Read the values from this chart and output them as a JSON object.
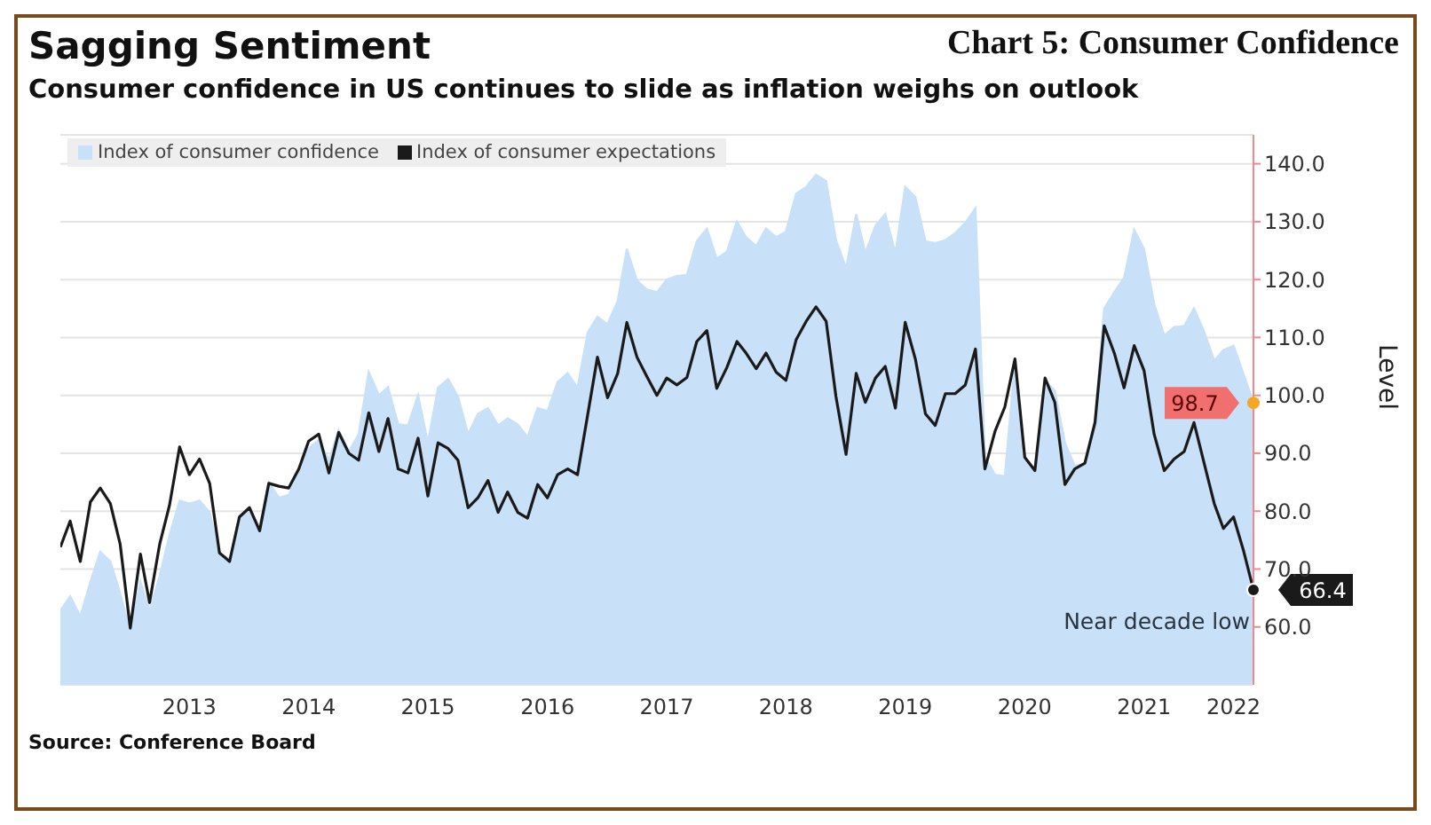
{
  "chart_data": {
    "type": "line",
    "title": "Sagging Sentiment",
    "subtitle": "Consumer confidence in US continues to slide as inflation weighs on outlook",
    "ylabel": "Level",
    "annotations": [
      "Chart 5: Consumer Confidence",
      "Source: Conference Board",
      {
        "text": "Near decade low",
        "x": "2022-06",
        "y": 66.4
      }
    ],
    "x": [
      "2012-06",
      "2012-07",
      "2012-08",
      "2012-09",
      "2012-10",
      "2012-11",
      "2012-12",
      "2013-01",
      "2013-02",
      "2013-03",
      "2013-04",
      "2013-05",
      "2013-06",
      "2013-07",
      "2013-08",
      "2013-09",
      "2013-10",
      "2013-11",
      "2013-12",
      "2014-01",
      "2014-02",
      "2014-03",
      "2014-04",
      "2014-05",
      "2014-06",
      "2014-07",
      "2014-08",
      "2014-09",
      "2014-10",
      "2014-11",
      "2014-12",
      "2015-01",
      "2015-02",
      "2015-03",
      "2015-04",
      "2015-05",
      "2015-06",
      "2015-07",
      "2015-08",
      "2015-09",
      "2015-10",
      "2015-11",
      "2015-12",
      "2016-01",
      "2016-02",
      "2016-03",
      "2016-04",
      "2016-05",
      "2016-06",
      "2016-07",
      "2016-08",
      "2016-09",
      "2016-10",
      "2016-11",
      "2016-12",
      "2017-01",
      "2017-02",
      "2017-03",
      "2017-04",
      "2017-05",
      "2017-06",
      "2017-07",
      "2017-08",
      "2017-09",
      "2017-10",
      "2017-11",
      "2017-12",
      "2018-01",
      "2018-02",
      "2018-03",
      "2018-04",
      "2018-05",
      "2018-06",
      "2018-07",
      "2018-08",
      "2018-09",
      "2018-10",
      "2018-11",
      "2018-12",
      "2019-01",
      "2019-02",
      "2019-03",
      "2019-04",
      "2019-05",
      "2019-06",
      "2019-07",
      "2019-08",
      "2019-09",
      "2019-10",
      "2019-11",
      "2019-12",
      "2020-01",
      "2020-02",
      "2020-03",
      "2020-04",
      "2020-05",
      "2020-06",
      "2020-07",
      "2020-08",
      "2020-09",
      "2020-10",
      "2020-11",
      "2020-12",
      "2021-01",
      "2021-02",
      "2021-03",
      "2021-04",
      "2021-05",
      "2021-06",
      "2021-07",
      "2021-08",
      "2021-09",
      "2021-10",
      "2021-11",
      "2021-12",
      "2022-01",
      "2022-02",
      "2022-03",
      "2022-04",
      "2022-05",
      "2022-06"
    ],
    "series": [
      {
        "name": "Index of consumer confidence",
        "type": "area",
        "color": "#c8e1f9",
        "values": [
          62.8,
          65.3,
          61.8,
          67.8,
          73,
          71.3,
          65.8,
          59.3,
          67.8,
          62.8,
          68.8,
          75.8,
          81.8,
          81.3,
          81.8,
          79.8,
          72.6,
          71.8,
          78.8,
          80,
          77.3,
          85,
          82.3,
          82.8,
          86.8,
          90.8,
          92.3,
          88.8,
          94,
          90.3,
          93.3,
          104,
          100,
          101.4,
          95,
          94.8,
          100,
          91.8,
          101.3,
          102.8,
          99.8,
          93.3,
          96.8,
          97.8,
          94.8,
          96,
          95,
          92.8,
          97.8,
          97.3,
          102.3,
          103.8,
          101.3,
          110.8,
          113.6,
          112.3,
          116.3,
          125.3,
          119.8,
          118.3,
          117.8,
          120,
          120.6,
          120.8,
          126.6,
          128.8,
          123.6,
          124.8,
          130,
          127.3,
          125.8,
          128.8,
          127.3,
          128.3,
          134.8,
          136,
          138.1,
          137,
          126.8,
          122,
          131.3,
          124.6,
          129.3,
          131.3,
          124.6,
          136,
          134.3,
          126.6,
          126.3,
          126.8,
          128,
          129.8,
          132.3,
          89.3,
          86.3,
          86,
          105.8,
          89.3,
          87.3,
          102.6,
          100.8,
          91.8,
          87.8,
          88.3,
          95.8,
          115,
          117.8,
          120.3,
          128.6,
          125.3,
          115.8,
          110.3,
          111.8,
          112,
          115,
          111,
          106,
          107.8,
          108.6,
          103.8,
          98.7
        ],
        "value_labels": [
          null,
          null,
          null,
          null,
          null,
          null,
          null,
          null,
          null,
          null,
          null,
          null,
          null,
          null,
          null,
          null,
          null,
          null,
          null,
          null,
          null,
          null,
          null,
          null,
          null,
          null,
          null,
          null,
          null,
          null,
          null,
          null,
          null,
          null,
          null,
          null,
          null,
          null,
          null,
          null,
          null,
          null,
          null,
          null,
          null,
          null,
          null,
          null,
          null,
          null,
          null,
          null,
          null,
          null,
          null,
          null,
          null,
          null,
          null,
          null,
          null,
          null,
          null,
          null,
          null,
          null,
          null,
          null,
          null,
          null,
          null,
          null,
          null,
          null,
          null,
          null,
          null,
          null,
          null,
          null,
          null,
          null,
          null,
          null,
          null,
          null,
          null,
          null,
          null,
          null,
          null,
          null,
          null,
          null,
          null,
          null,
          null,
          null,
          null,
          null,
          null,
          null,
          null,
          null,
          null,
          null,
          null,
          null,
          null,
          null,
          null,
          null,
          null,
          null,
          null,
          null,
          null,
          null,
          null,
          null,
          "98.7"
        ]
      },
      {
        "name": "Index of consumer expectations",
        "color": "#1a1a1a",
        "values": [
          73.8,
          78.3,
          71.3,
          81.6,
          84,
          81.3,
          74.3,
          59.8,
          72.6,
          64.2,
          74.3,
          81,
          91.1,
          86.3,
          89,
          84.8,
          72.8,
          71.3,
          79,
          80.6,
          76.6,
          84.8,
          84.3,
          84,
          87.3,
          92.1,
          93.3,
          86.6,
          93.6,
          90,
          88.8,
          97,
          90.3,
          96,
          87.3,
          86.6,
          92.6,
          82.6,
          91.8,
          90.8,
          88.8,
          80.6,
          82.3,
          85.3,
          79.8,
          83.3,
          79.8,
          78.8,
          84.6,
          82.3,
          86.3,
          87.3,
          86.3,
          96.6,
          106.6,
          99.6,
          103.8,
          112.6,
          106.6,
          103.3,
          100,
          103,
          101.8,
          103.1,
          109.3,
          111.2,
          101.2,
          104.8,
          109.3,
          107.3,
          104.6,
          107.3,
          104,
          102.6,
          109.6,
          112.8,
          115.3,
          112.8,
          99.8,
          89.8,
          103.8,
          98.8,
          103,
          105,
          97.8,
          112.6,
          106.3,
          96.8,
          94.8,
          100.3,
          100.3,
          101.8,
          108,
          87.3,
          93.8,
          98,
          106.3,
          89.3,
          87,
          103,
          98.8,
          84.6,
          87.3,
          88.3,
          95.3,
          112,
          107.3,
          101.3,
          108.6,
          104.3,
          93.3,
          87,
          89,
          90.3,
          95.3,
          88.3,
          81.3,
          77,
          79,
          73.3,
          66.4
        ],
        "value_labels": [
          null,
          null,
          null,
          null,
          null,
          null,
          null,
          null,
          null,
          null,
          null,
          null,
          null,
          null,
          null,
          null,
          null,
          null,
          null,
          null,
          null,
          null,
          null,
          null,
          null,
          null,
          null,
          null,
          null,
          null,
          null,
          null,
          null,
          null,
          null,
          null,
          null,
          null,
          null,
          null,
          null,
          null,
          null,
          null,
          null,
          null,
          null,
          null,
          null,
          null,
          null,
          null,
          null,
          null,
          null,
          null,
          null,
          null,
          null,
          null,
          null,
          null,
          null,
          null,
          null,
          null,
          null,
          null,
          null,
          null,
          null,
          null,
          null,
          null,
          null,
          null,
          null,
          null,
          null,
          null,
          null,
          null,
          null,
          null,
          null,
          null,
          null,
          null,
          null,
          null,
          null,
          null,
          null,
          null,
          null,
          null,
          null,
          null,
          null,
          null,
          null,
          null,
          null,
          null,
          null,
          null,
          null,
          null,
          null,
          null,
          null,
          null,
          null,
          null,
          null,
          null,
          null,
          null,
          null,
          null,
          "66.4"
        ]
      }
    ],
    "xlim": [
      "2012-06",
      "2022-06"
    ],
    "xticks": [
      {
        "value": "2013-07",
        "label": "2013"
      },
      {
        "value": "2014-07",
        "label": "2014"
      },
      {
        "value": "2015-07",
        "label": "2015"
      },
      {
        "value": "2016-07",
        "label": "2016"
      },
      {
        "value": "2017-07",
        "label": "2017"
      },
      {
        "value": "2018-07",
        "label": "2018"
      },
      {
        "value": "2019-07",
        "label": "2019"
      },
      {
        "value": "2020-07",
        "label": "2020"
      },
      {
        "value": "2021-07",
        "label": "2021"
      },
      {
        "value": "2022-04",
        "label": "2022"
      }
    ],
    "ylim": [
      50,
      145
    ],
    "yticks": [
      {
        "value": 60,
        "label": "60.0"
      },
      {
        "value": 70,
        "label": "70.0"
      },
      {
        "value": 80,
        "label": "80.0"
      },
      {
        "value": 90,
        "label": "90.0"
      },
      {
        "value": 100,
        "label": "100.0"
      },
      {
        "value": 110,
        "label": "110.0"
      },
      {
        "value": 120,
        "label": "120.0"
      },
      {
        "value": 130,
        "label": "130.0"
      },
      {
        "value": 140,
        "label": "140.0"
      }
    ],
    "grid": "y",
    "legend": "top left"
  }
}
